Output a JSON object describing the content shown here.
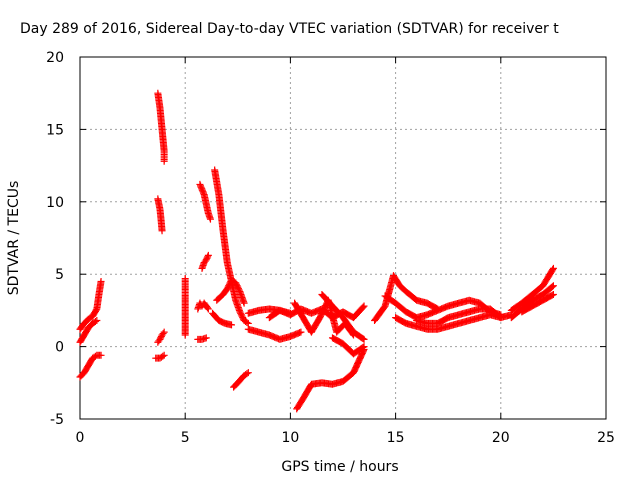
{
  "chart_data": {
    "type": "scatter",
    "title": "Day 289 of 2016, Sidereal Day-to-day VTEC variation (SDTVAR) for receiver t",
    "xlabel": "GPS time / hours",
    "ylabel": "SDTVAR / TECUs",
    "xlim": [
      0,
      25
    ],
    "ylim": [
      -5,
      20
    ],
    "x_ticks": [
      "0",
      "5",
      "10",
      "15",
      "20",
      "25"
    ],
    "y_ticks": [
      "-5",
      "0",
      "5",
      "10",
      "15",
      "20"
    ],
    "grid": true,
    "marker": "+",
    "color": "#ff0000",
    "series": [
      {
        "points": [
          [
            0.0,
            1.2
          ],
          [
            0.2,
            1.6
          ],
          [
            0.4,
            1.9
          ],
          [
            0.6,
            2.1
          ],
          [
            0.8,
            2.6
          ],
          [
            0.9,
            3.6
          ],
          [
            1.0,
            4.5
          ]
        ]
      },
      {
        "points": [
          [
            0.0,
            0.3
          ],
          [
            0.2,
            0.8
          ],
          [
            0.4,
            1.3
          ],
          [
            0.6,
            1.6
          ],
          [
            0.8,
            1.8
          ]
        ]
      },
      {
        "points": [
          [
            0.0,
            -2.1
          ],
          [
            0.2,
            -1.8
          ],
          [
            0.4,
            -1.3
          ],
          [
            0.6,
            -0.8
          ],
          [
            0.8,
            -0.6
          ],
          [
            1.0,
            -0.6
          ]
        ]
      },
      {
        "points": [
          [
            3.7,
            17.5
          ],
          [
            3.8,
            16.5
          ],
          [
            3.9,
            15.0
          ],
          [
            4.0,
            13.5
          ],
          [
            4.0,
            12.8
          ]
        ]
      },
      {
        "points": [
          [
            3.7,
            10.2
          ],
          [
            3.8,
            9.5
          ],
          [
            3.85,
            8.8
          ],
          [
            3.9,
            8.0
          ]
        ]
      },
      {
        "points": [
          [
            3.7,
            0.3
          ],
          [
            3.8,
            0.5
          ],
          [
            3.9,
            0.8
          ],
          [
            4.0,
            1.0
          ]
        ]
      },
      {
        "points": [
          [
            3.6,
            -0.8
          ],
          [
            3.8,
            -0.8
          ],
          [
            4.0,
            -0.6
          ]
        ]
      },
      {
        "points": [
          [
            5.0,
            4.7
          ],
          [
            5.0,
            3.2
          ],
          [
            5.0,
            2.6
          ],
          [
            5.0,
            0.8
          ]
        ]
      },
      {
        "points": [
          [
            5.7,
            11.2
          ],
          [
            5.9,
            10.5
          ],
          [
            6.1,
            9.2
          ],
          [
            6.2,
            8.8
          ]
        ]
      },
      {
        "points": [
          [
            6.4,
            12.2
          ],
          [
            6.6,
            10.5
          ],
          [
            6.8,
            8.0
          ],
          [
            7.0,
            5.8
          ],
          [
            7.2,
            4.5
          ],
          [
            7.4,
            3.2
          ],
          [
            7.6,
            2.4
          ],
          [
            7.8,
            1.8
          ],
          [
            8.0,
            1.6
          ]
        ]
      },
      {
        "points": [
          [
            5.6,
            2.6
          ],
          [
            5.7,
            3.0
          ],
          [
            5.8,
            2.8
          ],
          [
            5.9,
            3.0
          ],
          [
            6.1,
            2.6
          ]
        ]
      },
      {
        "points": [
          [
            5.8,
            5.4
          ],
          [
            5.9,
            5.8
          ],
          [
            6.0,
            6.0
          ],
          [
            6.1,
            6.3
          ]
        ]
      },
      {
        "points": [
          [
            5.6,
            0.5
          ],
          [
            5.8,
            0.5
          ],
          [
            6.0,
            0.6
          ]
        ]
      },
      {
        "points": [
          [
            6.3,
            2.3
          ],
          [
            6.6,
            1.8
          ],
          [
            6.9,
            1.6
          ],
          [
            7.2,
            1.5
          ]
        ]
      },
      {
        "points": [
          [
            6.5,
            3.2
          ],
          [
            6.8,
            3.6
          ],
          [
            7.0,
            4.0
          ],
          [
            7.2,
            4.6
          ],
          [
            7.4,
            4.4
          ],
          [
            7.6,
            3.8
          ],
          [
            7.8,
            3.0
          ]
        ]
      },
      {
        "points": [
          [
            7.3,
            -2.8
          ],
          [
            7.5,
            -2.5
          ],
          [
            7.8,
            -2.0
          ],
          [
            8.0,
            -1.8
          ]
        ]
      },
      {
        "points": [
          [
            8.0,
            2.3
          ],
          [
            8.5,
            2.5
          ],
          [
            9.0,
            2.6
          ],
          [
            9.5,
            2.5
          ],
          [
            10.0,
            2.3
          ]
        ]
      },
      {
        "points": [
          [
            8.0,
            1.2
          ],
          [
            8.5,
            1.0
          ],
          [
            9.0,
            0.8
          ],
          [
            9.5,
            0.5
          ],
          [
            10.0,
            0.7
          ],
          [
            10.5,
            1.0
          ]
        ]
      },
      {
        "points": [
          [
            9.0,
            2.0
          ],
          [
            9.5,
            2.5
          ],
          [
            10.0,
            2.2
          ],
          [
            10.5,
            2.6
          ],
          [
            11.0,
            2.3
          ],
          [
            11.5,
            2.6
          ],
          [
            12.0,
            2.0
          ],
          [
            12.5,
            2.4
          ],
          [
            13.0,
            2.0
          ],
          [
            13.5,
            2.8
          ]
        ]
      },
      {
        "points": [
          [
            10.2,
            3.0
          ],
          [
            10.6,
            2.0
          ],
          [
            11.0,
            1.0
          ],
          [
            11.4,
            2.0
          ],
          [
            11.8,
            3.2
          ],
          [
            12.2,
            1.0
          ],
          [
            12.6,
            1.6
          ],
          [
            13.0,
            0.8
          ]
        ]
      },
      {
        "points": [
          [
            11.5,
            3.6
          ],
          [
            12.0,
            2.8
          ],
          [
            12.5,
            2.0
          ],
          [
            13.0,
            1.0
          ],
          [
            13.5,
            0.5
          ]
        ]
      },
      {
        "points": [
          [
            10.3,
            -4.3
          ],
          [
            10.6,
            -3.6
          ],
          [
            11.0,
            -2.6
          ],
          [
            11.5,
            -2.5
          ],
          [
            12.0,
            -2.6
          ],
          [
            12.5,
            -2.4
          ],
          [
            13.0,
            -1.8
          ],
          [
            13.5,
            -0.2
          ]
        ]
      },
      {
        "points": [
          [
            12.0,
            0.6
          ],
          [
            12.5,
            0.2
          ],
          [
            13.0,
            -0.5
          ],
          [
            13.5,
            0.0
          ]
        ]
      },
      {
        "points": [
          [
            14.0,
            1.8
          ],
          [
            14.5,
            2.8
          ],
          [
            14.9,
            4.9
          ],
          [
            15.2,
            4.2
          ],
          [
            15.5,
            3.8
          ],
          [
            16.0,
            3.2
          ],
          [
            16.5,
            3.0
          ],
          [
            17.0,
            2.6
          ]
        ]
      },
      {
        "points": [
          [
            14.5,
            3.5
          ],
          [
            15.0,
            3.0
          ],
          [
            15.5,
            2.4
          ],
          [
            16.0,
            2.0
          ],
          [
            16.5,
            2.2
          ],
          [
            17.0,
            2.5
          ],
          [
            17.5,
            2.8
          ],
          [
            18.0,
            3.0
          ],
          [
            18.5,
            3.2
          ],
          [
            19.0,
            3.0
          ],
          [
            19.5,
            2.4
          ],
          [
            20.0,
            2.2
          ]
        ]
      },
      {
        "points": [
          [
            15.0,
            2.0
          ],
          [
            15.5,
            1.6
          ],
          [
            16.0,
            1.4
          ],
          [
            16.5,
            1.2
          ],
          [
            17.0,
            1.2
          ],
          [
            17.5,
            1.4
          ],
          [
            18.0,
            1.6
          ],
          [
            18.5,
            1.8
          ],
          [
            19.0,
            2.0
          ],
          [
            19.5,
            2.2
          ],
          [
            20.0,
            2.0
          ],
          [
            20.5,
            2.2
          ]
        ]
      },
      {
        "points": [
          [
            16.0,
            1.8
          ],
          [
            16.5,
            1.6
          ],
          [
            17.0,
            1.6
          ],
          [
            17.5,
            2.0
          ],
          [
            18.0,
            2.2
          ],
          [
            18.5,
            2.4
          ],
          [
            19.0,
            2.6
          ],
          [
            19.5,
            2.6
          ],
          [
            20.0,
            2.0
          ]
        ]
      },
      {
        "points": [
          [
            20.5,
            2.5
          ],
          [
            21.0,
            3.0
          ],
          [
            21.5,
            3.6
          ],
          [
            22.0,
            4.2
          ],
          [
            22.5,
            5.4
          ]
        ]
      },
      {
        "points": [
          [
            20.5,
            2.0
          ],
          [
            21.0,
            2.6
          ],
          [
            21.5,
            3.2
          ],
          [
            22.0,
            3.6
          ],
          [
            22.5,
            4.2
          ]
        ]
      },
      {
        "points": [
          [
            21.0,
            2.4
          ],
          [
            21.5,
            2.8
          ],
          [
            22.0,
            3.2
          ],
          [
            22.5,
            3.6
          ]
        ]
      }
    ]
  }
}
